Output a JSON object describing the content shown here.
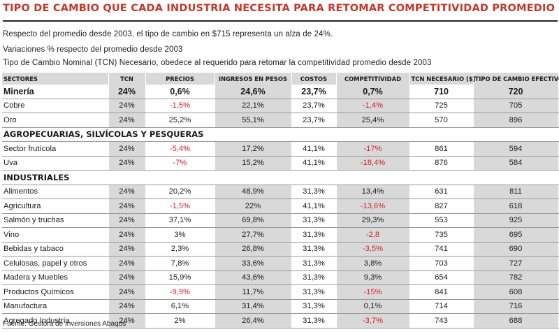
{
  "title": "TIPO DE CAMBIO QUE CADA INDUSTRIA NECESITA PARA RETOMAR COMPETITIVIDAD PROMEDIO",
  "descriptions": [
    "Respecto del promedio desde 2003, el tipo de cambio en $715 representa un alza de 24%.",
    "Variaciones % respecto del promedio desde 2003",
    "Tipo de Cambio Nominal (TCN) Necesario, obedece al requerido para retomar la competitividad promedio desde 2003"
  ],
  "headers": [
    "SECTORES",
    "TCN",
    "PRECIOS",
    "INGRESOS EN PESOS",
    "COSTOS",
    "COMPETITIVIDAD",
    "TCN NECESARIO ($)",
    "TIPO DE CAMBIO EFECTIVO ($)"
  ],
  "colors": {
    "title": "#c0392b",
    "negative": "#d0232a",
    "shade": "#d9d9d9"
  },
  "rows": [
    {
      "type": "data",
      "bold": true,
      "cells": [
        "Minería",
        "24%",
        "0,6%",
        "24,6%",
        "23,7%",
        "0,7%",
        "710",
        "720"
      ]
    },
    {
      "type": "data",
      "cells": [
        "Cobre",
        "24%",
        "-1,5%",
        "22,1%",
        "23,7%",
        "-1,4%",
        "725",
        "705"
      ]
    },
    {
      "type": "data",
      "cells": [
        "Oro",
        "24%",
        "25,2%",
        "55,1%",
        "23,7%",
        "25,4%",
        "570",
        "896"
      ]
    },
    {
      "type": "section",
      "label": "AGROPECUARIAS, SILVÍCOLAS Y PESQUERAS"
    },
    {
      "type": "data",
      "cells": [
        "Sector frutícola",
        "24%",
        "-5,4%",
        "17,2%",
        "41,1%",
        "-17%",
        "861",
        "594"
      ]
    },
    {
      "type": "data",
      "cells": [
        "Uva",
        "24%",
        "-7%",
        "15,2%",
        "41,1%",
        "-18,4%",
        "876",
        "584"
      ]
    },
    {
      "type": "section",
      "label": "INDUSTRIALES"
    },
    {
      "type": "data",
      "cells": [
        "Alimentos",
        "24%",
        "20,2%",
        "48,9%",
        "31,3%",
        "13,4%",
        "631",
        "811"
      ]
    },
    {
      "type": "data",
      "cells": [
        "Agricultura",
        "24%",
        "-1,5%",
        "22%",
        "41,1%",
        "-13,6%",
        "827",
        "618"
      ]
    },
    {
      "type": "data",
      "cells": [
        "Salmón y truchas",
        "24%",
        "37,1%",
        "69,8%",
        "31,3%",
        "29,3%",
        "553",
        "925"
      ]
    },
    {
      "type": "data",
      "cells": [
        "Vino",
        "24%",
        "3%",
        "27,7%",
        "31,3%",
        "-2,8",
        "735",
        "695"
      ]
    },
    {
      "type": "data",
      "cells": [
        "Bebidas y tabaco",
        "24%",
        "2,3%",
        "26,8%",
        "31,3%",
        "-3,5%",
        "741",
        "690"
      ]
    },
    {
      "type": "data",
      "cells": [
        "Celulosas, papel y otros",
        "24%",
        "7,8%",
        "33,6%",
        "31,3%",
        "3,8%",
        "703",
        "727"
      ]
    },
    {
      "type": "data",
      "cells": [
        "Madera y Muebles",
        "24%",
        "15,9%",
        "43,6%",
        "31,3%",
        "9,3%",
        "654",
        "782"
      ]
    },
    {
      "type": "data",
      "cells": [
        "Productos Químicos",
        "24%",
        "-9,9%",
        "11,7%",
        "31,3%",
        "-15%",
        "841",
        "608"
      ]
    },
    {
      "type": "data",
      "cells": [
        "Manufactura",
        "24%",
        "6,1%",
        "31,4%",
        "31,3%",
        "0,1%",
        "714",
        "716"
      ]
    },
    {
      "type": "data",
      "cells": [
        "Agregado Industria",
        "24%",
        "2%",
        "26,4%",
        "31,3%",
        "-3,7%",
        "743",
        "688"
      ]
    }
  ],
  "source": "Fuente: Gestora de Inversiones Abaqus"
}
